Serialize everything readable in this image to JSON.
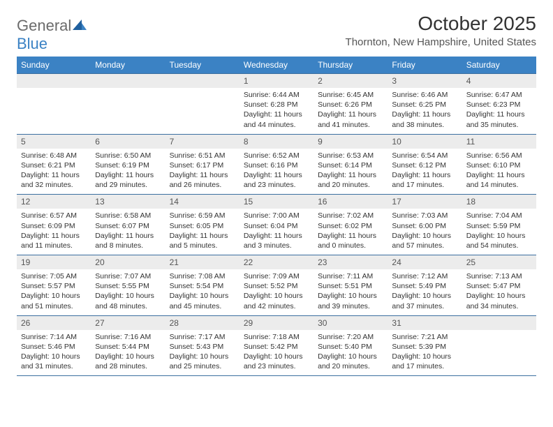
{
  "logo": {
    "word1": "General",
    "word2": "Blue"
  },
  "title": "October 2025",
  "location": "Thornton, New Hampshire, United States",
  "colors": {
    "header_bg": "#3b82c4",
    "header_text": "#ffffff",
    "row_border": "#3b6fa0",
    "daynum_bg": "#ececec",
    "daynum_text": "#555555",
    "body_text": "#333333",
    "logo_gray": "#6b6b6b",
    "logo_blue": "#3b82c4",
    "page_bg": "#ffffff"
  },
  "days_of_week": [
    "Sunday",
    "Monday",
    "Tuesday",
    "Wednesday",
    "Thursday",
    "Friday",
    "Saturday"
  ],
  "weeks": [
    [
      {
        "n": "",
        "sr": "",
        "ss": "",
        "dl": ""
      },
      {
        "n": "",
        "sr": "",
        "ss": "",
        "dl": ""
      },
      {
        "n": "",
        "sr": "",
        "ss": "",
        "dl": ""
      },
      {
        "n": "1",
        "sr": "Sunrise: 6:44 AM",
        "ss": "Sunset: 6:28 PM",
        "dl": "Daylight: 11 hours and 44 minutes."
      },
      {
        "n": "2",
        "sr": "Sunrise: 6:45 AM",
        "ss": "Sunset: 6:26 PM",
        "dl": "Daylight: 11 hours and 41 minutes."
      },
      {
        "n": "3",
        "sr": "Sunrise: 6:46 AM",
        "ss": "Sunset: 6:25 PM",
        "dl": "Daylight: 11 hours and 38 minutes."
      },
      {
        "n": "4",
        "sr": "Sunrise: 6:47 AM",
        "ss": "Sunset: 6:23 PM",
        "dl": "Daylight: 11 hours and 35 minutes."
      }
    ],
    [
      {
        "n": "5",
        "sr": "Sunrise: 6:48 AM",
        "ss": "Sunset: 6:21 PM",
        "dl": "Daylight: 11 hours and 32 minutes."
      },
      {
        "n": "6",
        "sr": "Sunrise: 6:50 AM",
        "ss": "Sunset: 6:19 PM",
        "dl": "Daylight: 11 hours and 29 minutes."
      },
      {
        "n": "7",
        "sr": "Sunrise: 6:51 AM",
        "ss": "Sunset: 6:17 PM",
        "dl": "Daylight: 11 hours and 26 minutes."
      },
      {
        "n": "8",
        "sr": "Sunrise: 6:52 AM",
        "ss": "Sunset: 6:16 PM",
        "dl": "Daylight: 11 hours and 23 minutes."
      },
      {
        "n": "9",
        "sr": "Sunrise: 6:53 AM",
        "ss": "Sunset: 6:14 PM",
        "dl": "Daylight: 11 hours and 20 minutes."
      },
      {
        "n": "10",
        "sr": "Sunrise: 6:54 AM",
        "ss": "Sunset: 6:12 PM",
        "dl": "Daylight: 11 hours and 17 minutes."
      },
      {
        "n": "11",
        "sr": "Sunrise: 6:56 AM",
        "ss": "Sunset: 6:10 PM",
        "dl": "Daylight: 11 hours and 14 minutes."
      }
    ],
    [
      {
        "n": "12",
        "sr": "Sunrise: 6:57 AM",
        "ss": "Sunset: 6:09 PM",
        "dl": "Daylight: 11 hours and 11 minutes."
      },
      {
        "n": "13",
        "sr": "Sunrise: 6:58 AM",
        "ss": "Sunset: 6:07 PM",
        "dl": "Daylight: 11 hours and 8 minutes."
      },
      {
        "n": "14",
        "sr": "Sunrise: 6:59 AM",
        "ss": "Sunset: 6:05 PM",
        "dl": "Daylight: 11 hours and 5 minutes."
      },
      {
        "n": "15",
        "sr": "Sunrise: 7:00 AM",
        "ss": "Sunset: 6:04 PM",
        "dl": "Daylight: 11 hours and 3 minutes."
      },
      {
        "n": "16",
        "sr": "Sunrise: 7:02 AM",
        "ss": "Sunset: 6:02 PM",
        "dl": "Daylight: 11 hours and 0 minutes."
      },
      {
        "n": "17",
        "sr": "Sunrise: 7:03 AM",
        "ss": "Sunset: 6:00 PM",
        "dl": "Daylight: 10 hours and 57 minutes."
      },
      {
        "n": "18",
        "sr": "Sunrise: 7:04 AM",
        "ss": "Sunset: 5:59 PM",
        "dl": "Daylight: 10 hours and 54 minutes."
      }
    ],
    [
      {
        "n": "19",
        "sr": "Sunrise: 7:05 AM",
        "ss": "Sunset: 5:57 PM",
        "dl": "Daylight: 10 hours and 51 minutes."
      },
      {
        "n": "20",
        "sr": "Sunrise: 7:07 AM",
        "ss": "Sunset: 5:55 PM",
        "dl": "Daylight: 10 hours and 48 minutes."
      },
      {
        "n": "21",
        "sr": "Sunrise: 7:08 AM",
        "ss": "Sunset: 5:54 PM",
        "dl": "Daylight: 10 hours and 45 minutes."
      },
      {
        "n": "22",
        "sr": "Sunrise: 7:09 AM",
        "ss": "Sunset: 5:52 PM",
        "dl": "Daylight: 10 hours and 42 minutes."
      },
      {
        "n": "23",
        "sr": "Sunrise: 7:11 AM",
        "ss": "Sunset: 5:51 PM",
        "dl": "Daylight: 10 hours and 39 minutes."
      },
      {
        "n": "24",
        "sr": "Sunrise: 7:12 AM",
        "ss": "Sunset: 5:49 PM",
        "dl": "Daylight: 10 hours and 37 minutes."
      },
      {
        "n": "25",
        "sr": "Sunrise: 7:13 AM",
        "ss": "Sunset: 5:47 PM",
        "dl": "Daylight: 10 hours and 34 minutes."
      }
    ],
    [
      {
        "n": "26",
        "sr": "Sunrise: 7:14 AM",
        "ss": "Sunset: 5:46 PM",
        "dl": "Daylight: 10 hours and 31 minutes."
      },
      {
        "n": "27",
        "sr": "Sunrise: 7:16 AM",
        "ss": "Sunset: 5:44 PM",
        "dl": "Daylight: 10 hours and 28 minutes."
      },
      {
        "n": "28",
        "sr": "Sunrise: 7:17 AM",
        "ss": "Sunset: 5:43 PM",
        "dl": "Daylight: 10 hours and 25 minutes."
      },
      {
        "n": "29",
        "sr": "Sunrise: 7:18 AM",
        "ss": "Sunset: 5:42 PM",
        "dl": "Daylight: 10 hours and 23 minutes."
      },
      {
        "n": "30",
        "sr": "Sunrise: 7:20 AM",
        "ss": "Sunset: 5:40 PM",
        "dl": "Daylight: 10 hours and 20 minutes."
      },
      {
        "n": "31",
        "sr": "Sunrise: 7:21 AM",
        "ss": "Sunset: 5:39 PM",
        "dl": "Daylight: 10 hours and 17 minutes."
      },
      {
        "n": "",
        "sr": "",
        "ss": "",
        "dl": ""
      }
    ]
  ]
}
